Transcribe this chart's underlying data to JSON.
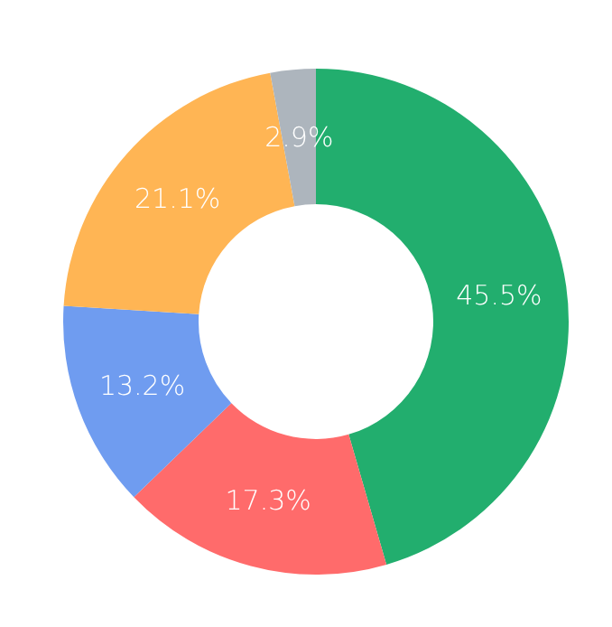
{
  "chart_data": {
    "type": "donut",
    "categories": [
      null,
      null,
      null,
      null,
      null
    ],
    "values": [
      45.5,
      17.3,
      13.2,
      21.1,
      2.9
    ],
    "colors": [
      "#22ae6e",
      "#ff6b6b",
      "#6f9cf0",
      "#ffb554",
      "#adb5bd"
    ],
    "value_labels": [
      "45.5%",
      "17.3%",
      "13.2%",
      "21.1%",
      "2.9%"
    ]
  }
}
